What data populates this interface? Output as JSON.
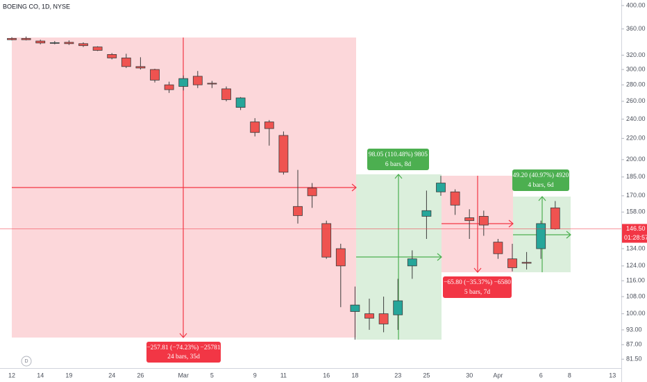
{
  "chart_data": {
    "type": "candlestick",
    "title": "BOEING CO, 1D, NYSE",
    "categories": [
      "12",
      null,
      "14",
      null,
      "19",
      null,
      null,
      "24",
      null,
      "26",
      null,
      null,
      "Mar",
      null,
      "5",
      null,
      null,
      "9",
      null,
      "11",
      null,
      null,
      "16",
      null,
      "18",
      null,
      null,
      "23",
      null,
      "25",
      null,
      null,
      "30",
      null,
      "Apr",
      null,
      null,
      "6",
      null,
      "8",
      null,
      null,
      "13"
    ],
    "open": [
      345,
      345,
      341,
      338,
      339,
      337,
      332,
      321,
      316,
      304,
      300,
      280,
      278,
      291,
      282,
      275,
      253,
      237,
      237,
      223,
      162,
      176,
      150,
      134,
      101,
      100,
      100,
      99.5,
      124,
      155,
      173,
      173,
      154,
      155,
      138,
      128,
      126,
      134,
      161,
      null,
      null,
      null,
      null
    ],
    "high": [
      347,
      348,
      343,
      341,
      342,
      339,
      333,
      323,
      322,
      317,
      301,
      284,
      292,
      298,
      285,
      278,
      265,
      241,
      239,
      227,
      191,
      180,
      152,
      137,
      113,
      107,
      108,
      117,
      133,
      174,
      186,
      175,
      160,
      159,
      140,
      137,
      132,
      152,
      166,
      null,
      null,
      null,
      null
    ],
    "low": [
      342,
      342,
      336,
      336,
      335,
      332,
      326,
      314,
      302,
      300,
      283,
      270,
      273,
      276,
      276,
      260,
      250,
      222,
      213,
      187,
      150,
      161,
      128,
      103,
      89,
      93,
      92,
      93,
      117,
      140,
      170,
      156,
      140,
      142,
      128,
      121,
      122,
      128,
      146,
      null,
      null,
      null,
      null
    ],
    "close": [
      343,
      343,
      338,
      338.5,
      337,
      334,
      327,
      316,
      304,
      302,
      286,
      274,
      288,
      280,
      281,
      262,
      264,
      226,
      230,
      189,
      155.5,
      170,
      129,
      124,
      104,
      98,
      95.5,
      106,
      128,
      159,
      180,
      163,
      152,
      149,
      131,
      123,
      125.5,
      150,
      146.5,
      null,
      null,
      null,
      null
    ],
    "up_color": "#26a69a",
    "down_color": "#ef5350",
    "log_scale": true,
    "ylim": [
      78.3,
      410.1
    ],
    "yticks": [
      {
        "value": 400,
        "label": "400.00"
      },
      {
        "value": 360,
        "label": "360.00"
      },
      {
        "value": 320,
        "label": "320.00"
      },
      {
        "value": 300,
        "label": "300.00"
      },
      {
        "value": 280,
        "label": "280.00"
      },
      {
        "value": 260,
        "label": "260.00"
      },
      {
        "value": 240,
        "label": "240.00"
      },
      {
        "value": 220,
        "label": "220.00"
      },
      {
        "value": 200,
        "label": "200.00"
      },
      {
        "value": 185,
        "label": "185.00"
      },
      {
        "value": 170,
        "label": "170.00"
      },
      {
        "value": 158,
        "label": "158.00"
      },
      {
        "value": 134,
        "label": "134.00"
      },
      {
        "value": 124,
        "label": "124.00"
      },
      {
        "value": 116,
        "label": "116.00"
      },
      {
        "value": 108,
        "label": "108.00"
      },
      {
        "value": 100,
        "label": "100.00"
      },
      {
        "value": 93,
        "label": "93.00"
      },
      {
        "value": 87,
        "label": "87.00"
      },
      {
        "value": 81.5,
        "label": "81.50"
      }
    ],
    "current_price": {
      "value": 146.5,
      "label": "146.50"
    },
    "countdown": "01:28:57",
    "grid": false,
    "measurements": [
      {
        "change": "−257.81 (−74.23%) −25781",
        "span": "24 bars, 35d"
      },
      {
        "change": "98.05 (110.48%) 9805",
        "span": "6 bars, 8d"
      },
      {
        "change": "−65.80 (−35.37%) −6580",
        "span": "5 bars, 7d"
      },
      {
        "change": "49.20 (40.97%) 4920",
        "span": "4 bars, 6d"
      }
    ]
  }
}
